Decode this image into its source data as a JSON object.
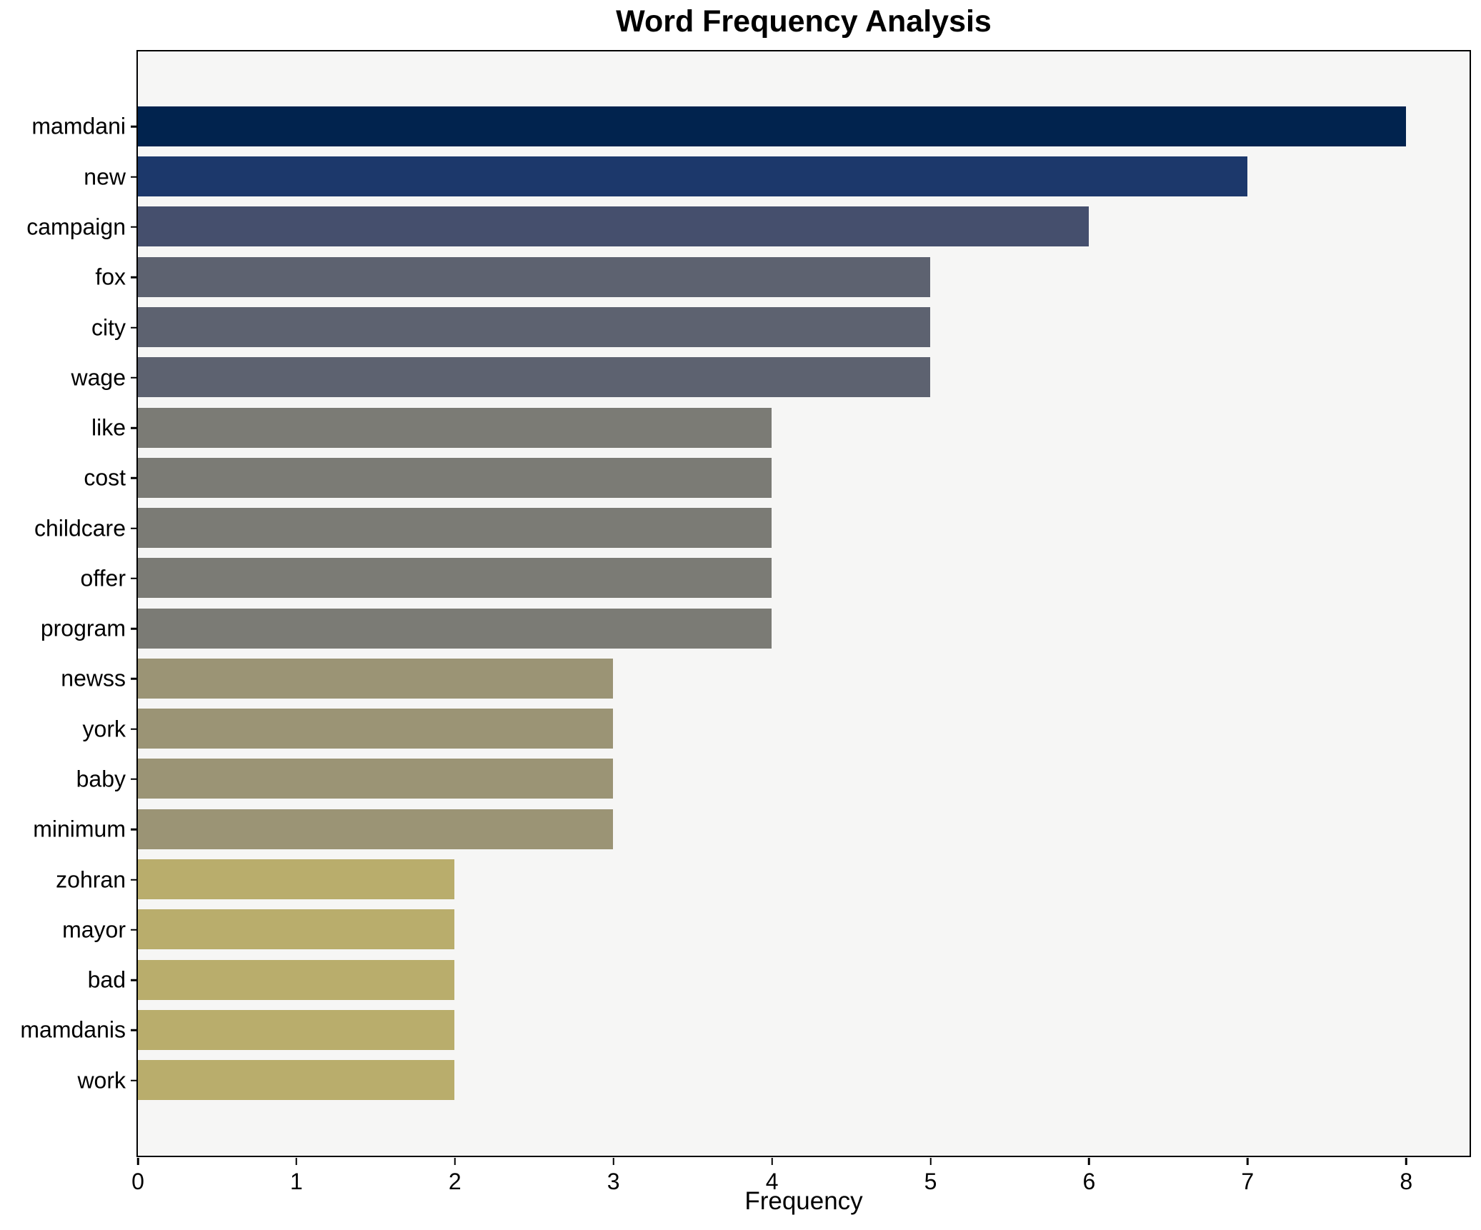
{
  "chart_data": {
    "type": "bar",
    "orientation": "horizontal",
    "title": "Word Frequency Analysis",
    "xlabel": "Frequency",
    "ylabel": "",
    "categories": [
      "mamdani",
      "new",
      "campaign",
      "fox",
      "city",
      "wage",
      "like",
      "cost",
      "childcare",
      "offer",
      "program",
      "newss",
      "york",
      "baby",
      "minimum",
      "zohran",
      "mayor",
      "bad",
      "mamdanis",
      "work"
    ],
    "values": [
      8,
      7,
      6,
      5,
      5,
      5,
      4,
      4,
      4,
      4,
      4,
      3,
      3,
      3,
      3,
      2,
      2,
      2,
      2,
      2
    ],
    "bar_colors": [
      "#01234e",
      "#1c386b",
      "#454f6d",
      "#5d6270",
      "#5d6270",
      "#5d6270",
      "#7b7b75",
      "#7b7b75",
      "#7b7b75",
      "#7b7b75",
      "#7b7b75",
      "#9b9475",
      "#9b9475",
      "#9b9475",
      "#9b9475",
      "#b9ad6c",
      "#b9ad6c",
      "#b9ad6c",
      "#b9ad6c",
      "#b9ad6c"
    ],
    "xlim": [
      0,
      8.4
    ],
    "xticks": [
      0,
      1,
      2,
      3,
      4,
      5,
      6,
      7,
      8
    ],
    "grid": false,
    "legend": null,
    "plot_background": "#f6f6f5",
    "figure_background": "#ffffff",
    "frame_color": "#000000"
  }
}
